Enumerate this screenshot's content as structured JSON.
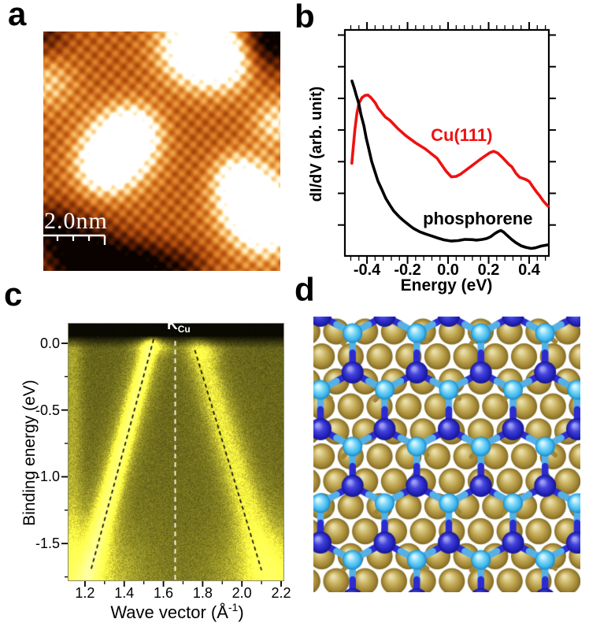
{
  "figure": {
    "background": "#ffffff",
    "panel_labels": {
      "a": "a",
      "b": "b",
      "c": "c",
      "d": "d"
    }
  },
  "panel_a": {
    "type": "stm-topograph",
    "scale_bar_text": "2.0nm",
    "colormap": [
      "#0a0200",
      "#5a1c02",
      "#c86414",
      "#eea050",
      "#ffffff"
    ]
  },
  "panel_d": {
    "type": "structure-model",
    "colors": {
      "cu_substrate": "#b49b42",
      "p_upper_atom": "#3232cf",
      "p_lower_atom": "#49c2f2",
      "bond_dark": "#2b2bd2",
      "bond_light": "#55b0e6"
    }
  },
  "chart_data": [
    {
      "panel": "b",
      "type": "line",
      "xlabel": "Energy (eV)",
      "ylabel": "dI/dV (arb. unit)",
      "xlim": [
        -0.509,
        0.497
      ],
      "ylim": [
        0,
        1
      ],
      "grid": false,
      "x_tick_labels": [
        "-0.4",
        "-0.2",
        "0.0",
        "0.2",
        "0.4"
      ],
      "x_tick_values": [
        -0.4,
        -0.2,
        0.0,
        0.2,
        0.4
      ],
      "series": [
        {
          "name": "Cu(111)",
          "color": "#ee1111",
          "label_anchor": [
            -0.085,
            0.533
          ],
          "points": [
            [
              -0.475,
              0.41
            ],
            [
              -0.468,
              0.48
            ],
            [
              -0.46,
              0.555
            ],
            [
              -0.45,
              0.63
            ],
            [
              -0.44,
              0.675
            ],
            [
              -0.425,
              0.7
            ],
            [
              -0.41,
              0.71
            ],
            [
              -0.395,
              0.712
            ],
            [
              -0.38,
              0.7
            ],
            [
              -0.36,
              0.678
            ],
            [
              -0.346,
              0.655
            ],
            [
              -0.31,
              0.615
            ],
            [
              -0.287,
              0.6
            ],
            [
              -0.25,
              0.565
            ],
            [
              -0.21,
              0.533
            ],
            [
              -0.16,
              0.5
            ],
            [
              -0.113,
              0.474
            ],
            [
              -0.054,
              0.432
            ],
            [
              -0.01,
              0.375
            ],
            [
              0.016,
              0.35
            ],
            [
              0.04,
              0.352
            ],
            [
              0.062,
              0.362
            ],
            [
              0.12,
              0.401
            ],
            [
              0.155,
              0.425
            ],
            [
              0.179,
              0.44
            ],
            [
              0.205,
              0.456
            ],
            [
              0.225,
              0.463
            ],
            [
              0.245,
              0.455
            ],
            [
              0.268,
              0.436
            ],
            [
              0.3,
              0.405
            ],
            [
              0.315,
              0.394
            ],
            [
              0.335,
              0.365
            ],
            [
              0.353,
              0.348
            ],
            [
              0.384,
              0.338
            ],
            [
              0.4,
              0.33
            ],
            [
              0.412,
              0.314
            ],
            [
              0.435,
              0.285
            ],
            [
              0.45,
              0.268
            ],
            [
              0.47,
              0.243
            ],
            [
              0.493,
              0.22
            ]
          ]
        },
        {
          "name": "phosphorene",
          "color": "#000000",
          "label_anchor": [
            -0.124,
            0.164
          ],
          "points": [
            [
              -0.474,
              0.774
            ],
            [
              -0.462,
              0.74
            ],
            [
              -0.454,
              0.714
            ],
            [
              -0.44,
              0.672
            ],
            [
              -0.43,
              0.627
            ],
            [
              -0.415,
              0.575
            ],
            [
              -0.404,
              0.523
            ],
            [
              -0.39,
              0.47
            ],
            [
              -0.377,
              0.418
            ],
            [
              -0.36,
              0.37
            ],
            [
              -0.346,
              0.331
            ],
            [
              -0.325,
              0.29
            ],
            [
              -0.307,
              0.254
            ],
            [
              -0.285,
              0.222
            ],
            [
              -0.268,
              0.199
            ],
            [
              -0.24,
              0.172
            ],
            [
              -0.221,
              0.157
            ],
            [
              -0.19,
              0.135
            ],
            [
              -0.171,
              0.122
            ],
            [
              -0.14,
              0.107
            ],
            [
              -0.113,
              0.098
            ],
            [
              -0.08,
              0.088
            ],
            [
              -0.054,
              0.08
            ],
            [
              -0.02,
              0.071
            ],
            [
              0.016,
              0.066
            ],
            [
              0.05,
              0.068
            ],
            [
              0.082,
              0.073
            ],
            [
              0.12,
              0.072
            ],
            [
              0.14,
              0.07
            ],
            [
              0.17,
              0.073
            ],
            [
              0.19,
              0.077
            ],
            [
              0.21,
              0.085
            ],
            [
              0.229,
              0.098
            ],
            [
              0.245,
              0.107
            ],
            [
              0.26,
              0.113
            ],
            [
              0.275,
              0.105
            ],
            [
              0.291,
              0.091
            ],
            [
              0.315,
              0.072
            ],
            [
              0.334,
              0.059
            ],
            [
              0.36,
              0.045
            ],
            [
              0.384,
              0.038
            ],
            [
              0.41,
              0.033
            ],
            [
              0.431,
              0.036
            ],
            [
              0.46,
              0.044
            ],
            [
              0.493,
              0.049
            ]
          ]
        }
      ]
    },
    {
      "panel": "c",
      "type": "heatmap",
      "xlabel_pre": "Wave vector (Å",
      "xlabel_sup": "-1",
      "xlabel_post": ")",
      "ylabel": "Binding energy (eV)",
      "xlim": [
        1.116,
        2.212
      ],
      "ylim": [
        -1.776,
        0.147
      ],
      "x_tick_labels": [
        "1.2",
        "1.4",
        "1.6",
        "1.8",
        "2.0",
        "2.2"
      ],
      "x_tick_values": [
        1.2,
        1.4,
        1.6,
        1.8,
        2.0,
        2.2
      ],
      "y_tick_labels": [
        "0.0",
        "-0.5",
        "-1.0",
        "-1.5"
      ],
      "y_tick_values": [
        0.0,
        -0.5,
        -1.0,
        -1.5
      ],
      "k_point": {
        "label": "K",
        "subscript": "Cu",
        "x": 1.66
      },
      "colors": {
        "bright": "#f2f23c",
        "background": "#5c5c18"
      },
      "band_guides": [
        {
          "from": [
            1.55,
            0.03
          ],
          "to": [
            1.23,
            -1.7
          ]
        },
        {
          "from": [
            1.76,
            -0.05
          ],
          "to": [
            2.1,
            -1.7
          ]
        }
      ]
    }
  ]
}
